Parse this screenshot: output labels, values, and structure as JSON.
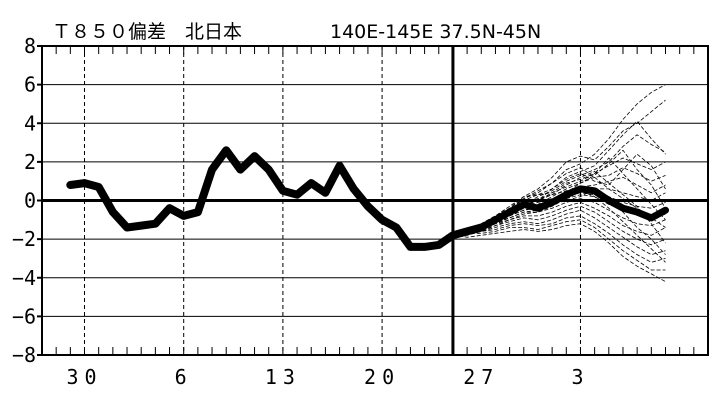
{
  "title": {
    "left": "Ｔ８５０偏差　北日本",
    "right": "140E-145E  37.5N-45N"
  },
  "chart_data": {
    "type": "line",
    "title": "Ｔ８５０偏差　北日本　140E-145E  37.5N-45N",
    "xlabel": "",
    "ylabel": "",
    "ylim": [
      -8,
      8
    ],
    "yticks": [
      -8,
      -6,
      -4,
      -2,
      0,
      2,
      4,
      6,
      8
    ],
    "ytick_labels": [
      "−8",
      "−6",
      "−4",
      "−2",
      "0",
      "2",
      "4",
      "6",
      "8"
    ],
    "xlim": [
      0,
      47
    ],
    "xticks": [
      {
        "x": 3,
        "label": "30"
      },
      {
        "x": 10,
        "label": "6"
      },
      {
        "x": 17,
        "label": "13"
      },
      {
        "x": 24,
        "label": "20"
      },
      {
        "x": 31,
        "label": "27"
      },
      {
        "x": 38,
        "label": "3"
      }
    ],
    "minor_tick_step": 1,
    "dashed_gridlines_x": [
      3,
      10,
      17,
      24,
      38
    ],
    "forecast_start_x": 29,
    "grid": true,
    "analysis": {
      "x": [
        2,
        3,
        4,
        5,
        6,
        7,
        8,
        9,
        10,
        11,
        12,
        13,
        14,
        15,
        16,
        17,
        18,
        19,
        20,
        21,
        22,
        23,
        24,
        25,
        26,
        27,
        28,
        29,
        30,
        31
      ],
      "values": [
        0.8,
        0.9,
        0.7,
        -0.6,
        -1.4,
        -1.3,
        -1.2,
        -0.4,
        -0.8,
        -0.6,
        1.6,
        2.6,
        1.6,
        2.3,
        1.6,
        0.5,
        0.3,
        0.9,
        0.4,
        1.8,
        0.6,
        -0.3,
        -1.0,
        -1.4,
        -2.4,
        -2.4,
        -2.3,
        -1.8,
        -1.6,
        -1.4
      ]
    },
    "ensemble_x": [
      29,
      30,
      31,
      32,
      33,
      34,
      35,
      36,
      37,
      38,
      39,
      40,
      41,
      42,
      43,
      44
    ],
    "ensemble_mean": [
      -1.8,
      -1.6,
      -1.4,
      -1.0,
      -0.6,
      -0.2,
      -0.4,
      -0.1,
      0.3,
      0.6,
      0.5,
      0.0,
      -0.4,
      -0.6,
      -0.9,
      -0.5
    ],
    "ensemble_members": [
      [
        -1.8,
        -1.5,
        -1.2,
        -0.8,
        -0.4,
        0.2,
        0.6,
        1.2,
        2.0,
        2.3,
        2.1,
        2.8,
        3.6,
        4.0,
        4.6,
        5.2
      ],
      [
        -1.8,
        -1.6,
        -1.3,
        -0.9,
        -0.5,
        0.1,
        0.4,
        0.9,
        1.6,
        1.9,
        2.4,
        3.2,
        4.2,
        5.0,
        5.6,
        6.0
      ],
      [
        -1.8,
        -1.7,
        -1.5,
        -1.1,
        -0.7,
        -0.3,
        0.0,
        0.6,
        1.2,
        1.5,
        1.8,
        2.6,
        3.4,
        4.1,
        3.2,
        2.4
      ],
      [
        -1.8,
        -1.5,
        -1.3,
        -1.0,
        -0.6,
        -0.2,
        0.2,
        0.5,
        1.0,
        1.3,
        1.6,
        2.0,
        2.8,
        3.4,
        2.9,
        2.5
      ],
      [
        -1.8,
        -1.6,
        -1.4,
        -1.0,
        -0.5,
        0.0,
        0.3,
        0.4,
        0.9,
        1.1,
        1.4,
        1.8,
        2.2,
        1.9,
        1.6,
        2.0
      ],
      [
        -1.8,
        -1.7,
        -1.4,
        -1.1,
        -0.8,
        -0.4,
        -0.2,
        0.2,
        0.6,
        0.9,
        1.2,
        1.3,
        1.7,
        1.4,
        1.0,
        1.3
      ],
      [
        -1.8,
        -1.5,
        -1.2,
        -0.9,
        -0.6,
        -0.1,
        0.1,
        0.3,
        0.5,
        0.7,
        0.8,
        1.0,
        1.2,
        0.8,
        0.4,
        0.8
      ],
      [
        -1.8,
        -1.6,
        -1.4,
        -1.0,
        -0.6,
        -0.3,
        -0.1,
        0.1,
        0.4,
        0.6,
        0.6,
        0.6,
        0.4,
        0.2,
        0.0,
        0.4
      ],
      [
        -1.8,
        -1.7,
        -1.5,
        -1.2,
        -0.8,
        -0.5,
        -0.3,
        0.0,
        0.2,
        0.4,
        0.3,
        0.2,
        -0.1,
        -0.3,
        -0.4,
        -0.1
      ],
      [
        -1.8,
        -1.5,
        -1.3,
        -1.0,
        -0.7,
        -0.4,
        -0.4,
        -0.2,
        0.1,
        0.3,
        0.2,
        -0.2,
        -0.5,
        -0.7,
        -1.0,
        -0.7
      ],
      [
        -1.8,
        -1.6,
        -1.5,
        -1.1,
        -0.9,
        -0.6,
        -0.6,
        -0.4,
        -0.1,
        0.1,
        -0.1,
        -0.5,
        -0.9,
        -1.2,
        -1.3,
        -1.0
      ],
      [
        -1.8,
        -1.7,
        -1.4,
        -1.2,
        -1.0,
        -0.8,
        -0.8,
        -0.6,
        -0.3,
        -0.1,
        -0.4,
        -0.8,
        -1.3,
        -1.6,
        -1.8,
        -1.4
      ],
      [
        -1.8,
        -1.6,
        -1.5,
        -1.3,
        -1.1,
        -0.9,
        -1.0,
        -0.8,
        -0.5,
        -0.3,
        -0.6,
        -1.1,
        -1.6,
        -2.0,
        -2.3,
        -2.0
      ],
      [
        -1.8,
        -1.7,
        -1.6,
        -1.4,
        -1.2,
        -1.1,
        -1.2,
        -1.0,
        -0.7,
        -0.5,
        -0.9,
        -1.4,
        -1.9,
        -2.4,
        -2.8,
        -2.6
      ],
      [
        -1.8,
        -1.8,
        -1.6,
        -1.5,
        -1.3,
        -1.2,
        -1.3,
        -1.2,
        -0.9,
        -0.8,
        -1.2,
        -1.7,
        -2.3,
        -2.8,
        -3.2,
        -3.0
      ],
      [
        -1.8,
        -1.7,
        -1.7,
        -1.6,
        -1.4,
        -1.4,
        -1.5,
        -1.3,
        -1.1,
        -1.0,
        -1.4,
        -2.0,
        -2.6,
        -3.1,
        -3.6,
        -3.6
      ],
      [
        -1.8,
        -1.9,
        -1.8,
        -1.7,
        -1.6,
        -1.5,
        -1.6,
        -1.5,
        -1.3,
        -1.2,
        -1.6,
        -2.2,
        -2.9,
        -3.4,
        -3.8,
        -4.2
      ],
      [
        -1.8,
        -1.6,
        -1.3,
        -0.9,
        -0.4,
        0.1,
        0.5,
        0.9,
        1.4,
        1.7,
        1.2,
        0.6,
        0.1,
        -0.4,
        -0.9,
        -1.4
      ],
      [
        -1.8,
        -1.5,
        -1.2,
        -0.8,
        -0.3,
        0.2,
        0.3,
        0.6,
        1.1,
        1.4,
        1.0,
        0.8,
        1.6,
        2.4,
        1.8,
        0.6
      ],
      [
        -1.8,
        -1.7,
        -1.5,
        -1.2,
        -0.7,
        -0.2,
        0.0,
        0.3,
        0.8,
        1.2,
        1.5,
        0.9,
        0.3,
        -0.3,
        -1.2,
        -2.2
      ],
      [
        -1.8,
        -1.6,
        -1.4,
        -1.1,
        -0.8,
        -0.5,
        -0.4,
        0.0,
        0.4,
        0.9,
        1.3,
        1.9,
        2.6,
        1.6,
        0.8,
        -0.4
      ],
      [
        -1.8,
        -1.7,
        -1.6,
        -1.3,
        -1.0,
        -0.7,
        -0.6,
        -0.3,
        0.1,
        0.5,
        0.2,
        -0.4,
        -1.1,
        -1.8,
        -2.5,
        -3.2
      ],
      [
        -1.8,
        -1.5,
        -1.3,
        -1.0,
        -0.6,
        -0.2,
        0.0,
        0.4,
        0.7,
        1.0,
        1.4,
        2.2,
        1.4,
        0.6,
        -0.2,
        -1.0
      ],
      [
        -1.8,
        -1.6,
        -1.5,
        -1.2,
        -0.9,
        -0.6,
        -0.5,
        -0.2,
        0.0,
        0.2,
        0.6,
        0.2,
        -0.6,
        -1.4,
        -2.0,
        -2.8
      ]
    ]
  }
}
